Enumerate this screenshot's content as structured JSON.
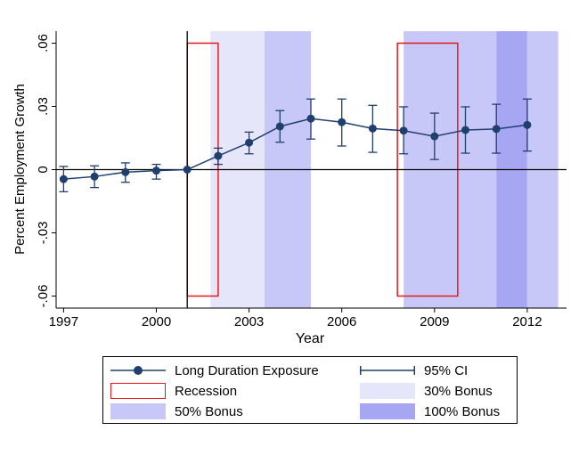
{
  "chart_data": {
    "type": "line",
    "xlabel": "Year",
    "ylabel": "Percent Employment Growth",
    "xlim": [
      1996.9,
      2013.1
    ],
    "ylim": [
      -0.067,
      0.067
    ],
    "xticks": [
      1997,
      2000,
      2003,
      2006,
      2009,
      2012
    ],
    "yticks": [
      -0.06,
      -0.03,
      0,
      0.03,
      0.06
    ],
    "ytick_labels": [
      "-.06",
      "-.03",
      "0",
      ".03",
      ".06"
    ],
    "policy_line_x": 2001,
    "series": [
      {
        "name": "Long Duration Exposure",
        "color": "#1f3f6e",
        "x": [
          1997,
          1998,
          1999,
          2000,
          2001,
          2002,
          2003,
          2004,
          2005,
          2006,
          2007,
          2008,
          2009,
          2010,
          2011,
          2012
        ],
        "y": [
          -0.0045,
          -0.0033,
          -0.0012,
          -0.0005,
          0,
          0.0065,
          0.0128,
          0.0205,
          0.0242,
          0.0225,
          0.0195,
          0.0185,
          0.0158,
          0.0188,
          0.0193,
          0.0212
        ],
        "ci_low": [
          -0.0105,
          -0.0085,
          -0.006,
          -0.0045,
          0,
          0.0025,
          0.0075,
          0.013,
          0.0145,
          0.0112,
          0.0082,
          0.0075,
          0.0048,
          0.0078,
          0.0078,
          0.0088
        ],
        "ci_high": [
          0.0015,
          0.0018,
          0.0032,
          0.0025,
          0,
          0.0102,
          0.0178,
          0.028,
          0.0335,
          0.0335,
          0.0305,
          0.0298,
          0.0268,
          0.0298,
          0.031,
          0.0335
        ]
      }
    ],
    "shaded_periods": [
      {
        "type": "30% Bonus",
        "from": 2001.75,
        "to": 2003.5
      },
      {
        "type": "50% Bonus",
        "from": 2003.5,
        "to": 2005.0
      },
      {
        "type": "50% Bonus",
        "from": 2008.0,
        "to": 2011.0
      },
      {
        "type": "100% Bonus",
        "from": 2011.0,
        "to": 2012.0
      },
      {
        "type": "50% Bonus",
        "from": 2012.0,
        "to": 2013.0
      }
    ],
    "recessions": [
      {
        "from": 2001.0,
        "to": 2002.0,
        "ylow": -0.06,
        "yhigh": 0.06
      },
      {
        "from": 2007.8,
        "to": 2009.75,
        "ylow": -0.06,
        "yhigh": 0.06
      }
    ],
    "colors": {
      "series": "#1f3f6e",
      "recession": "#e31a1c",
      "bonus30": "#e6e6fb",
      "bonus50": "#c8c8f8",
      "bonus100": "#a6a6f3"
    }
  },
  "legend": {
    "items": [
      {
        "label": "Long Duration Exposure"
      },
      {
        "label": "95% CI"
      },
      {
        "label": "Recession"
      },
      {
        "label": "30% Bonus"
      },
      {
        "label": "50% Bonus"
      },
      {
        "label": "100% Bonus"
      }
    ]
  }
}
